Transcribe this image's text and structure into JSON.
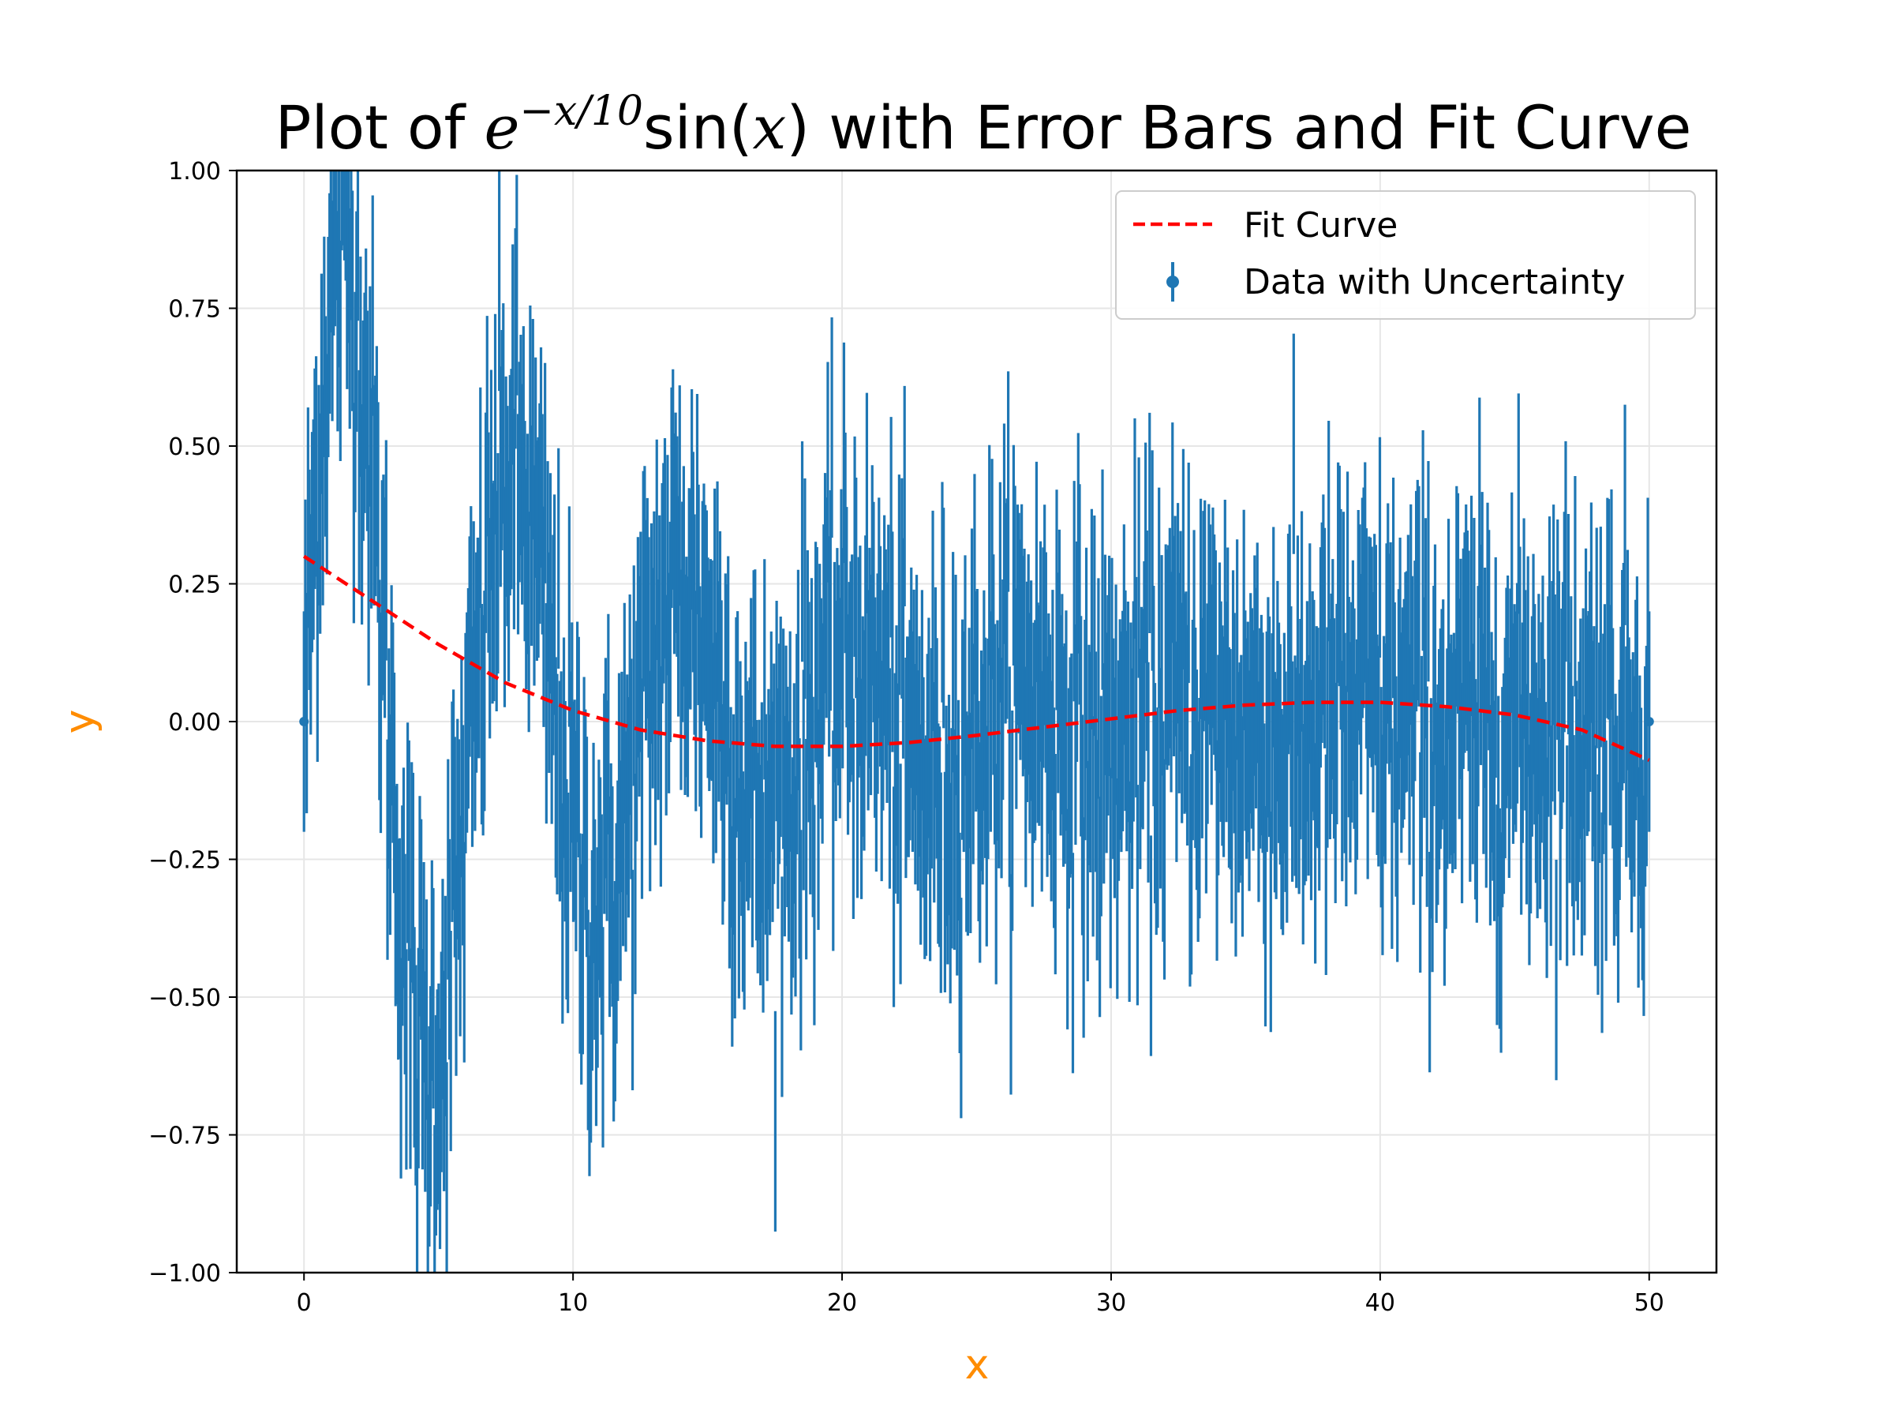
{
  "chart_data": {
    "type": "scatter",
    "title": {
      "prefix": "Plot of ",
      "math_base": "e",
      "math_exponent": "−x/10",
      "func_name": "sin(",
      "func_arg": "x",
      "suffix": ") with Error Bars and Fit Curve"
    },
    "xlabel": "x",
    "ylabel": "y",
    "axis_label_color": "#ff8c00",
    "xlim": [
      -2.5,
      52.5
    ],
    "ylim": [
      -1.0,
      1.0
    ],
    "xticks": [
      0,
      10,
      20,
      30,
      40,
      50
    ],
    "xtick_labels": [
      "0",
      "10",
      "20",
      "30",
      "40",
      "50"
    ],
    "yticks": [
      -1.0,
      -0.75,
      -0.5,
      -0.25,
      0.0,
      0.25,
      0.5,
      0.75,
      1.0
    ],
    "ytick_labels": [
      "−1.00",
      "−0.75",
      "−0.50",
      "−0.25",
      "0.00",
      "0.25",
      "0.50",
      "0.75",
      "1.00"
    ],
    "grid": true,
    "legend_position": "top-right",
    "series": [
      {
        "name": "Fit Curve",
        "kind": "line",
        "style": "dashed",
        "color": "#ff0000",
        "x": [
          0,
          2.5,
          5,
          7.5,
          10,
          12.5,
          15,
          17.5,
          20,
          22.5,
          25,
          27.5,
          30,
          32.5,
          35,
          37.5,
          40,
          42.5,
          45,
          47.5,
          50
        ],
        "y": [
          0.3,
          0.22,
          0.14,
          0.07,
          0.02,
          -0.015,
          -0.035,
          -0.045,
          -0.045,
          -0.038,
          -0.025,
          -0.01,
          0.005,
          0.02,
          0.03,
          0.035,
          0.035,
          0.027,
          0.012,
          -0.015,
          -0.07
        ]
      },
      {
        "name": "Data with Uncertainty",
        "kind": "errorbar",
        "color": "#1f77b4",
        "n_points": 1000,
        "x_range": [
          0,
          50
        ],
        "model": "exp(-x/10)*sin(x) + noise",
        "uncertainty": 0.2,
        "endpoints": [
          {
            "x": 0,
            "y": 0.0
          },
          {
            "x": 50,
            "y": 0.0
          }
        ]
      }
    ]
  }
}
